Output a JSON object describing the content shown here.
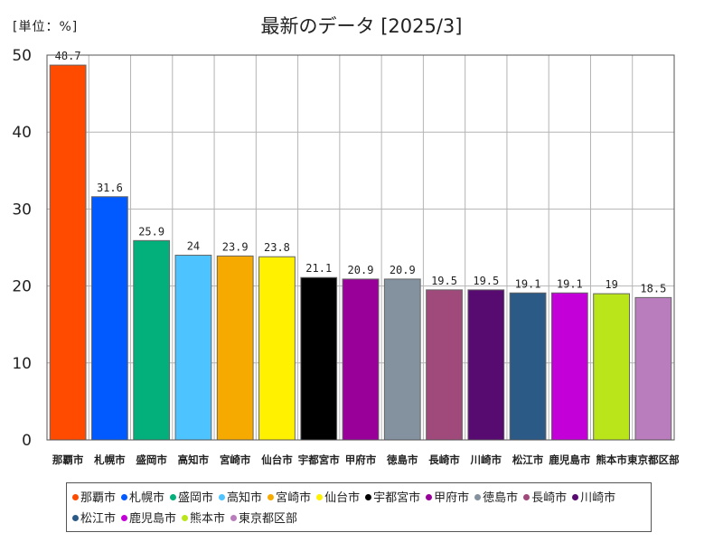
{
  "chart_data": {
    "type": "bar",
    "title": "最新のデータ [2025/3]",
    "unit_label": "[単位：%]",
    "ylim": [
      0,
      50
    ],
    "yticks": [
      0,
      10,
      20,
      30,
      40,
      50
    ],
    "grid": true,
    "legend_position": "bottom",
    "categories": [
      "那覇市",
      "札幌市",
      "盛岡市",
      "高知市",
      "宮崎市",
      "仙台市",
      "宇都宮市",
      "甲府市",
      "徳島市",
      "長崎市",
      "川崎市",
      "松江市",
      "鹿児島市",
      "熊本市",
      "東京都区部"
    ],
    "values": [
      48.7,
      31.6,
      25.9,
      24,
      23.9,
      23.8,
      21.1,
      20.9,
      20.9,
      19.5,
      19.5,
      19.1,
      19.1,
      19,
      18.5
    ],
    "colors": [
      "#ff4b00",
      "#005aff",
      "#03af7a",
      "#4dc4ff",
      "#f6aa00",
      "#fff100",
      "#000000",
      "#990099",
      "#84919e",
      "#a0497b",
      "#570b70",
      "#2b5a87",
      "#c300d8",
      "#b9e51a",
      "#b97cbd"
    ]
  }
}
